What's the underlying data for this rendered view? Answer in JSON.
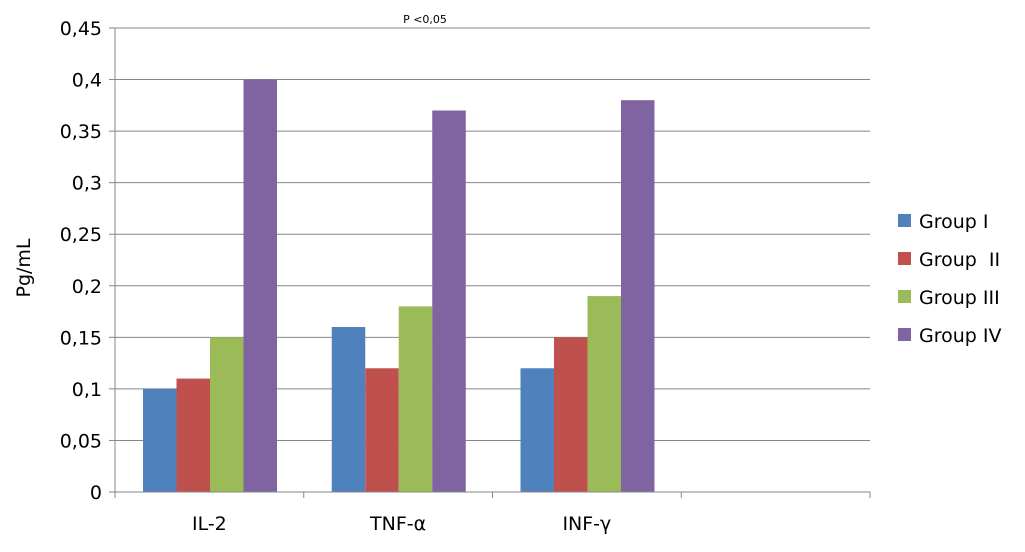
{
  "chart_data": {
    "type": "bar",
    "categories": [
      "IL-2",
      "TNF-α",
      "INF-γ",
      ""
    ],
    "series": [
      {
        "name": "Group I",
        "color": "#4F81BD",
        "values": [
          0.1,
          0.16,
          0.12,
          null
        ]
      },
      {
        "name": "Group  II",
        "color": "#C0504D",
        "values": [
          0.11,
          0.12,
          0.15,
          null
        ]
      },
      {
        "name": "Group III",
        "color": "#9BBB59",
        "values": [
          0.15,
          0.18,
          0.19,
          null
        ]
      },
      {
        "name": "Group IV",
        "color": "#8064A2",
        "values": [
          0.4,
          0.37,
          0.38,
          null
        ]
      }
    ],
    "ylabel": "Pg/mL",
    "ylim": [
      0,
      0.45
    ],
    "yticks": [
      "0",
      "0,05",
      "0,1",
      "0,15",
      "0,2",
      "0,25",
      "0,3",
      "0,35",
      "0,4",
      "0,45"
    ],
    "annotation": "P <0,05",
    "grid": true,
    "legend_position": "right"
  }
}
